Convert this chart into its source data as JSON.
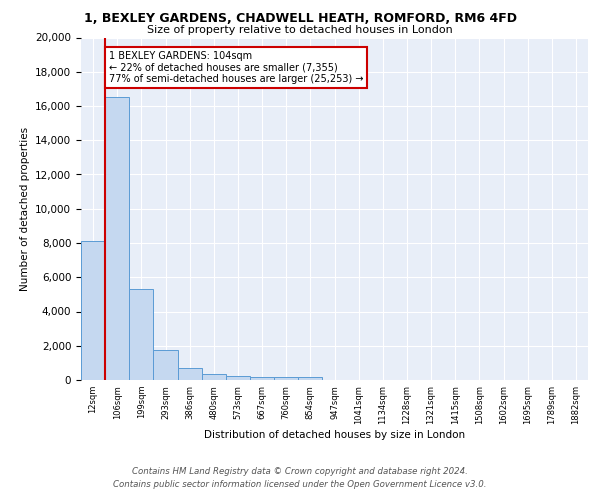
{
  "title1": "1, BEXLEY GARDENS, CHADWELL HEATH, ROMFORD, RM6 4FD",
  "title2": "Size of property relative to detached houses in London",
  "xlabel": "Distribution of detached houses by size in London",
  "ylabel": "Number of detached properties",
  "bin_labels": [
    "12sqm",
    "106sqm",
    "199sqm",
    "293sqm",
    "386sqm",
    "480sqm",
    "573sqm",
    "667sqm",
    "760sqm",
    "854sqm",
    "947sqm",
    "1041sqm",
    "1134sqm",
    "1228sqm",
    "1321sqm",
    "1415sqm",
    "1508sqm",
    "1602sqm",
    "1695sqm",
    "1789sqm",
    "1882sqm"
  ],
  "bar_heights": [
    8100,
    16500,
    5300,
    1750,
    700,
    330,
    220,
    190,
    170,
    150,
    0,
    0,
    0,
    0,
    0,
    0,
    0,
    0,
    0,
    0,
    0
  ],
  "bar_color": "#c5d8f0",
  "bar_edge_color": "#5b9bd5",
  "property_line_x": 1,
  "annotation_text": "1 BEXLEY GARDENS: 104sqm\n← 22% of detached houses are smaller (7,355)\n77% of semi-detached houses are larger (25,253) →",
  "annotation_box_color": "#ffffff",
  "annotation_box_edge": "#cc0000",
  "red_line_color": "#cc0000",
  "footer1": "Contains HM Land Registry data © Crown copyright and database right 2024.",
  "footer2": "Contains public sector information licensed under the Open Government Licence v3.0.",
  "ylim": [
    0,
    20000
  ],
  "yticks": [
    0,
    2000,
    4000,
    6000,
    8000,
    10000,
    12000,
    14000,
    16000,
    18000,
    20000
  ],
  "plot_bg_color": "#e8eef8"
}
